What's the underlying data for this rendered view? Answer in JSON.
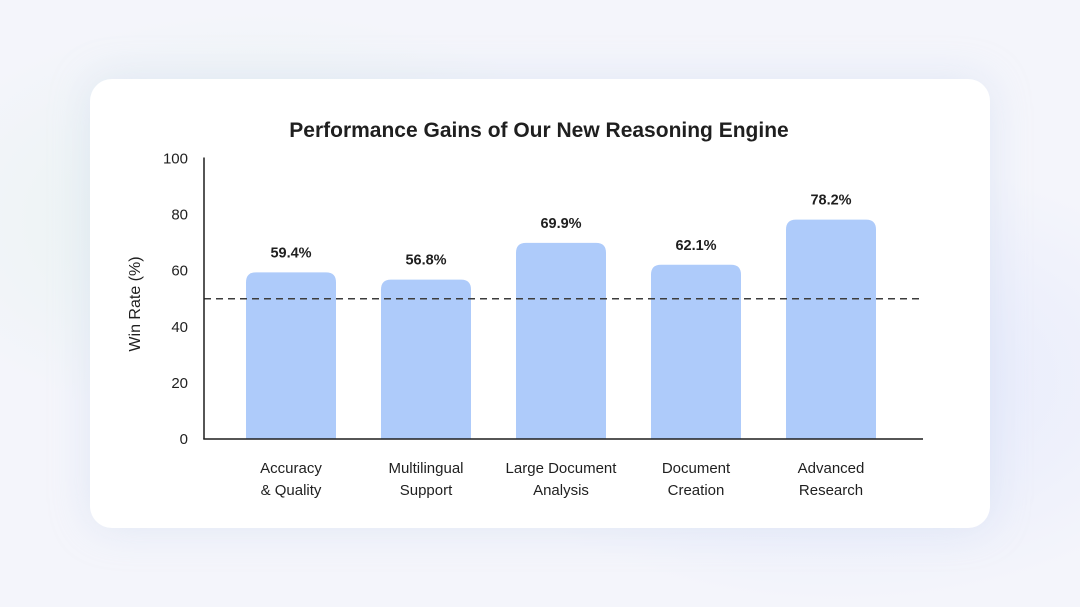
{
  "colors": {
    "bar": "#aecbfa",
    "axis": "#1f1f1f",
    "reference_line": "#3c3c3c",
    "card_background": "#ffffff"
  },
  "chart_data": {
    "type": "bar",
    "title": "Performance Gains of Our New Reasoning Engine",
    "ylabel": "Win Rate (%)",
    "xlabel": "",
    "ylim": [
      0,
      100
    ],
    "yticks": [
      0,
      20,
      40,
      60,
      80,
      100
    ],
    "categories": [
      [
        "Accuracy",
        "& Quality"
      ],
      [
        "Multilingual",
        "Support"
      ],
      [
        "Large Document",
        "Analysis"
      ],
      [
        "Document",
        "Creation"
      ],
      [
        "Advanced",
        "Research"
      ]
    ],
    "values": [
      59.4,
      56.8,
      69.9,
      62.1,
      78.2
    ],
    "data_labels": [
      "59.4%",
      "56.8%",
      "69.9%",
      "62.1%",
      "78.2%"
    ],
    "reference_line": {
      "y": 50,
      "style": "dashed"
    },
    "grid": false,
    "legend": "none"
  }
}
